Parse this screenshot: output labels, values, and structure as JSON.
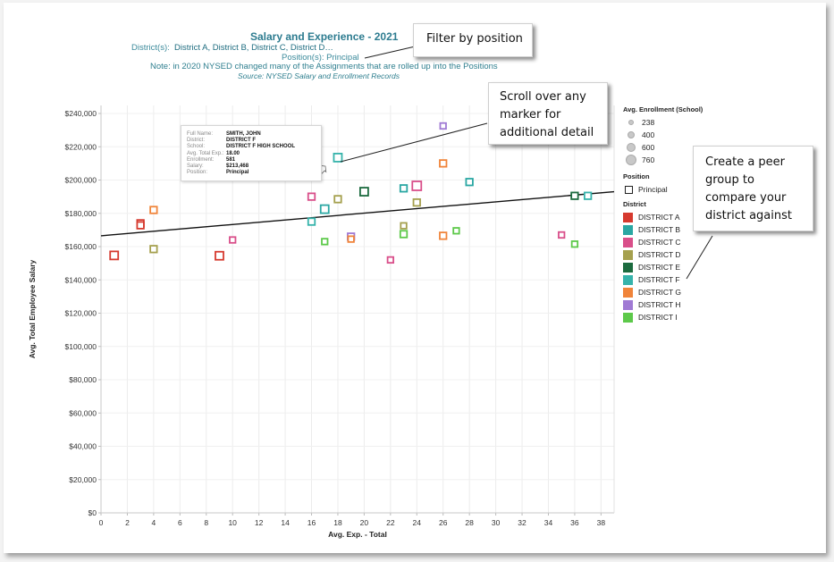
{
  "header": {
    "title": "Salary and Experience - 2021",
    "districts_label": "District(s):",
    "districts_value": "District A, District B, District C, District D…",
    "position_label": "Position(s):",
    "position_value": "Principal",
    "note": "Note: in 2020 NYSED changed many of the Assignments that are rolled up into the Positions",
    "source": "Source: NYSED Salary and Enrollment Records"
  },
  "tooltip": {
    "rows": [
      {
        "key": "Full Name:",
        "value": "SMITH, JOHN"
      },
      {
        "key": "District:",
        "value": "DISTRICT F"
      },
      {
        "key": "School:",
        "value": "DISTRICT F HIGH SCHOOL"
      },
      {
        "key": "Avg. Total Exp.:",
        "value": "18.00"
      },
      {
        "key": "Enrollment:",
        "value": "581"
      },
      {
        "key": "Salary:",
        "value": "$213,468"
      },
      {
        "key": "Position:",
        "value": "Principal"
      }
    ]
  },
  "callouts": {
    "filter": "Filter by position",
    "scroll": "Scroll over any marker for additional detail",
    "peer": "Create a peer group to compare your district against"
  },
  "legend": {
    "enrollment_title": "Avg. Enrollment (School)",
    "enrollment_items": [
      "238",
      "400",
      "600",
      "760"
    ],
    "position_title": "Position",
    "position_items": [
      "Principal"
    ],
    "district_title": "District",
    "district_items": [
      {
        "label": "DISTRICT A",
        "color": "#d63a2f"
      },
      {
        "label": "DISTRICT B",
        "color": "#2aa7a3"
      },
      {
        "label": "DISTRICT C",
        "color": "#d94f8a"
      },
      {
        "label": "DISTRICT D",
        "color": "#a5a04e"
      },
      {
        "label": "DISTRICT E",
        "color": "#1c6b3f"
      },
      {
        "label": "DISTRICT F",
        "color": "#36b3ab"
      },
      {
        "label": "DISTRICT G",
        "color": "#f0843a"
      },
      {
        "label": "DISTRICT H",
        "color": "#a07ad4"
      },
      {
        "label": "DISTRICT I",
        "color": "#5dc94a"
      }
    ]
  },
  "chart_data": {
    "type": "scatter",
    "title": "Salary and Experience - 2021",
    "xlabel": "Avg. Exp. - Total",
    "ylabel": "Avg. Total Employee Salary",
    "xlim": [
      0,
      39
    ],
    "ylim": [
      0,
      245000
    ],
    "x_ticks": [
      "0",
      "2",
      "4",
      "6",
      "8",
      "10",
      "12",
      "14",
      "16",
      "18",
      "20",
      "22",
      "24",
      "26",
      "28",
      "30",
      "32",
      "34",
      "36",
      "38"
    ],
    "y_ticks": [
      "$0",
      "$20,000",
      "$40,000",
      "$60,000",
      "$80,000",
      "$100,000",
      "$120,000",
      "$140,000",
      "$160,000",
      "$180,000",
      "$200,000",
      "$220,000",
      "$240,000"
    ],
    "grid": true,
    "legend_position": "right",
    "trend_line": {
      "x": [
        0,
        39
      ],
      "y": [
        166500,
        193000
      ]
    },
    "points": [
      {
        "district": "DISTRICT A",
        "x": 1,
        "y": 154700,
        "size": 600
      },
      {
        "district": "DISTRICT A",
        "x": 3,
        "y": 174000,
        "size": 400
      },
      {
        "district": "DISTRICT A",
        "x": 3,
        "y": 172800,
        "size": 400
      },
      {
        "district": "DISTRICT G",
        "x": 4,
        "y": 182000,
        "size": 400
      },
      {
        "district": "DISTRICT D",
        "x": 4,
        "y": 158500,
        "size": 400
      },
      {
        "district": "DISTRICT A",
        "x": 9,
        "y": 154500,
        "size": 600
      },
      {
        "district": "DISTRICT C",
        "x": 10,
        "y": 164000,
        "size": 238
      },
      {
        "district": "DISTRICT C",
        "x": 16,
        "y": 190000,
        "size": 400
      },
      {
        "district": "DISTRICT F",
        "x": 16,
        "y": 175000,
        "size": 400
      },
      {
        "district": "DISTRICT B",
        "x": 17,
        "y": 182500,
        "size": 600
      },
      {
        "district": "DISTRICT I",
        "x": 17,
        "y": 163000,
        "size": 238
      },
      {
        "district": "DISTRICT F",
        "x": 18,
        "y": 213468,
        "size": 581
      },
      {
        "district": "DISTRICT D",
        "x": 18,
        "y": 188500,
        "size": 400
      },
      {
        "district": "DISTRICT H",
        "x": 19,
        "y": 166000,
        "size": 400
      },
      {
        "district": "DISTRICT G",
        "x": 19,
        "y": 164500,
        "size": 238
      },
      {
        "district": "DISTRICT E",
        "x": 20,
        "y": 193000,
        "size": 600
      },
      {
        "district": "DISTRICT C",
        "x": 22,
        "y": 152000,
        "size": 238
      },
      {
        "district": "DISTRICT B",
        "x": 23,
        "y": 195000,
        "size": 400
      },
      {
        "district": "DISTRICT D",
        "x": 23,
        "y": 172500,
        "size": 238
      },
      {
        "district": "DISTRICT I",
        "x": 23,
        "y": 167500,
        "size": 400
      },
      {
        "district": "DISTRICT C",
        "x": 24,
        "y": 196500,
        "size": 760
      },
      {
        "district": "DISTRICT D",
        "x": 24,
        "y": 186500,
        "size": 400
      },
      {
        "district": "DISTRICT H",
        "x": 26,
        "y": 232500,
        "size": 238
      },
      {
        "district": "DISTRICT G",
        "x": 26,
        "y": 210000,
        "size": 400
      },
      {
        "district": "DISTRICT G",
        "x": 26,
        "y": 166500,
        "size": 400
      },
      {
        "district": "DISTRICT I",
        "x": 27,
        "y": 169500,
        "size": 238
      },
      {
        "district": "DISTRICT B",
        "x": 28,
        "y": 198800,
        "size": 400
      },
      {
        "district": "DISTRICT C",
        "x": 35,
        "y": 167000,
        "size": 238
      },
      {
        "district": "DISTRICT I",
        "x": 36,
        "y": 161500,
        "size": 238
      },
      {
        "district": "DISTRICT E",
        "x": 36,
        "y": 190500,
        "size": 400
      },
      {
        "district": "DISTRICT F",
        "x": 37,
        "y": 190500,
        "size": 400
      }
    ]
  }
}
